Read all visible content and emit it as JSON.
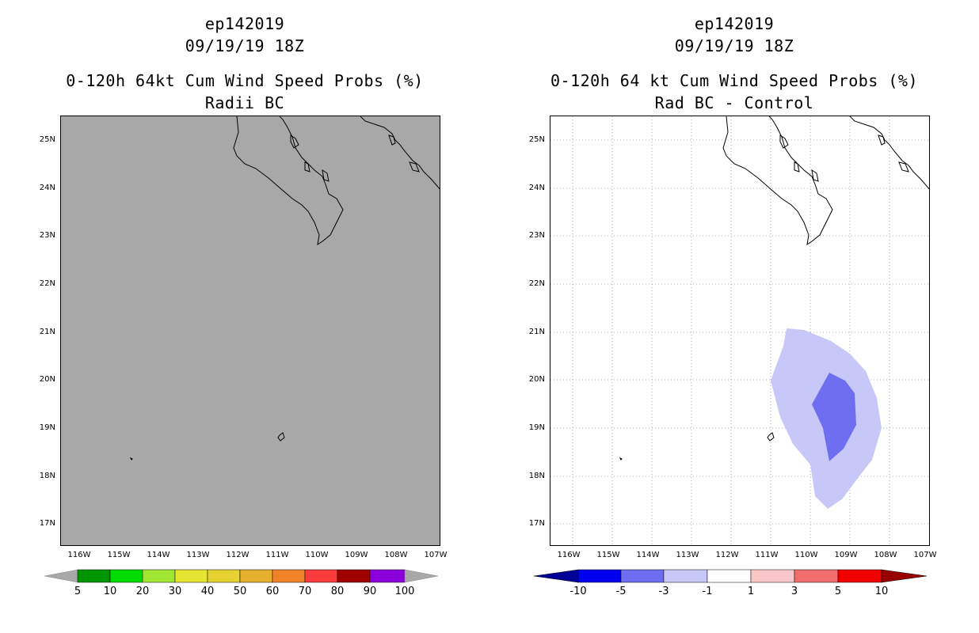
{
  "left_panel": {
    "storm_id": "ep142019",
    "datetime": "09/19/19 18Z",
    "product_title": "0-120h 64kt Cum Wind Speed Probs (%)",
    "subtitle": "Radii BC",
    "lat_labels": [
      "25N",
      "24N",
      "23N",
      "22N",
      "21N",
      "20N",
      "19N",
      "18N",
      "17N"
    ],
    "lon_labels": [
      "116W",
      "115W",
      "114W",
      "113W",
      "112W",
      "111W",
      "110W",
      "109W",
      "108W",
      "107W"
    ],
    "colorbar": {
      "labels": [
        "5",
        "10",
        "20",
        "30",
        "40",
        "50",
        "60",
        "70",
        "80",
        "90",
        "100"
      ],
      "colors": [
        "#009600",
        "#00dc00",
        "#a0e632",
        "#e6e632",
        "#e6d232",
        "#e6af2d",
        "#f08228",
        "#fa3c3c",
        "#a00000",
        "#8c00dc"
      ],
      "under_color": "#a8a8a8",
      "over_color": "#a8a8a8"
    }
  },
  "right_panel": {
    "storm_id": "ep142019",
    "datetime": "09/19/19 18Z",
    "product_title": "0-120h 64 kt Cum Wind Speed Probs (%)",
    "subtitle": "Rad BC - Control",
    "lat_labels": [
      "25N",
      "24N",
      "23N",
      "22N",
      "21N",
      "20N",
      "19N",
      "18N",
      "17N"
    ],
    "lon_labels": [
      "116W",
      "115W",
      "114W",
      "113W",
      "112W",
      "111W",
      "110W",
      "109W",
      "108W",
      "107W"
    ],
    "colorbar": {
      "labels": [
        "-10",
        "-5",
        "-3",
        "-1",
        "1",
        "3",
        "5",
        "10"
      ],
      "colors": [
        "#0000f0",
        "#6e6ef0",
        "#c8c8f8",
        "#ffffff",
        "#fac8c8",
        "#f06e6e",
        "#f00000"
      ],
      "under_color": "#000096",
      "over_color": "#960000"
    }
  }
}
